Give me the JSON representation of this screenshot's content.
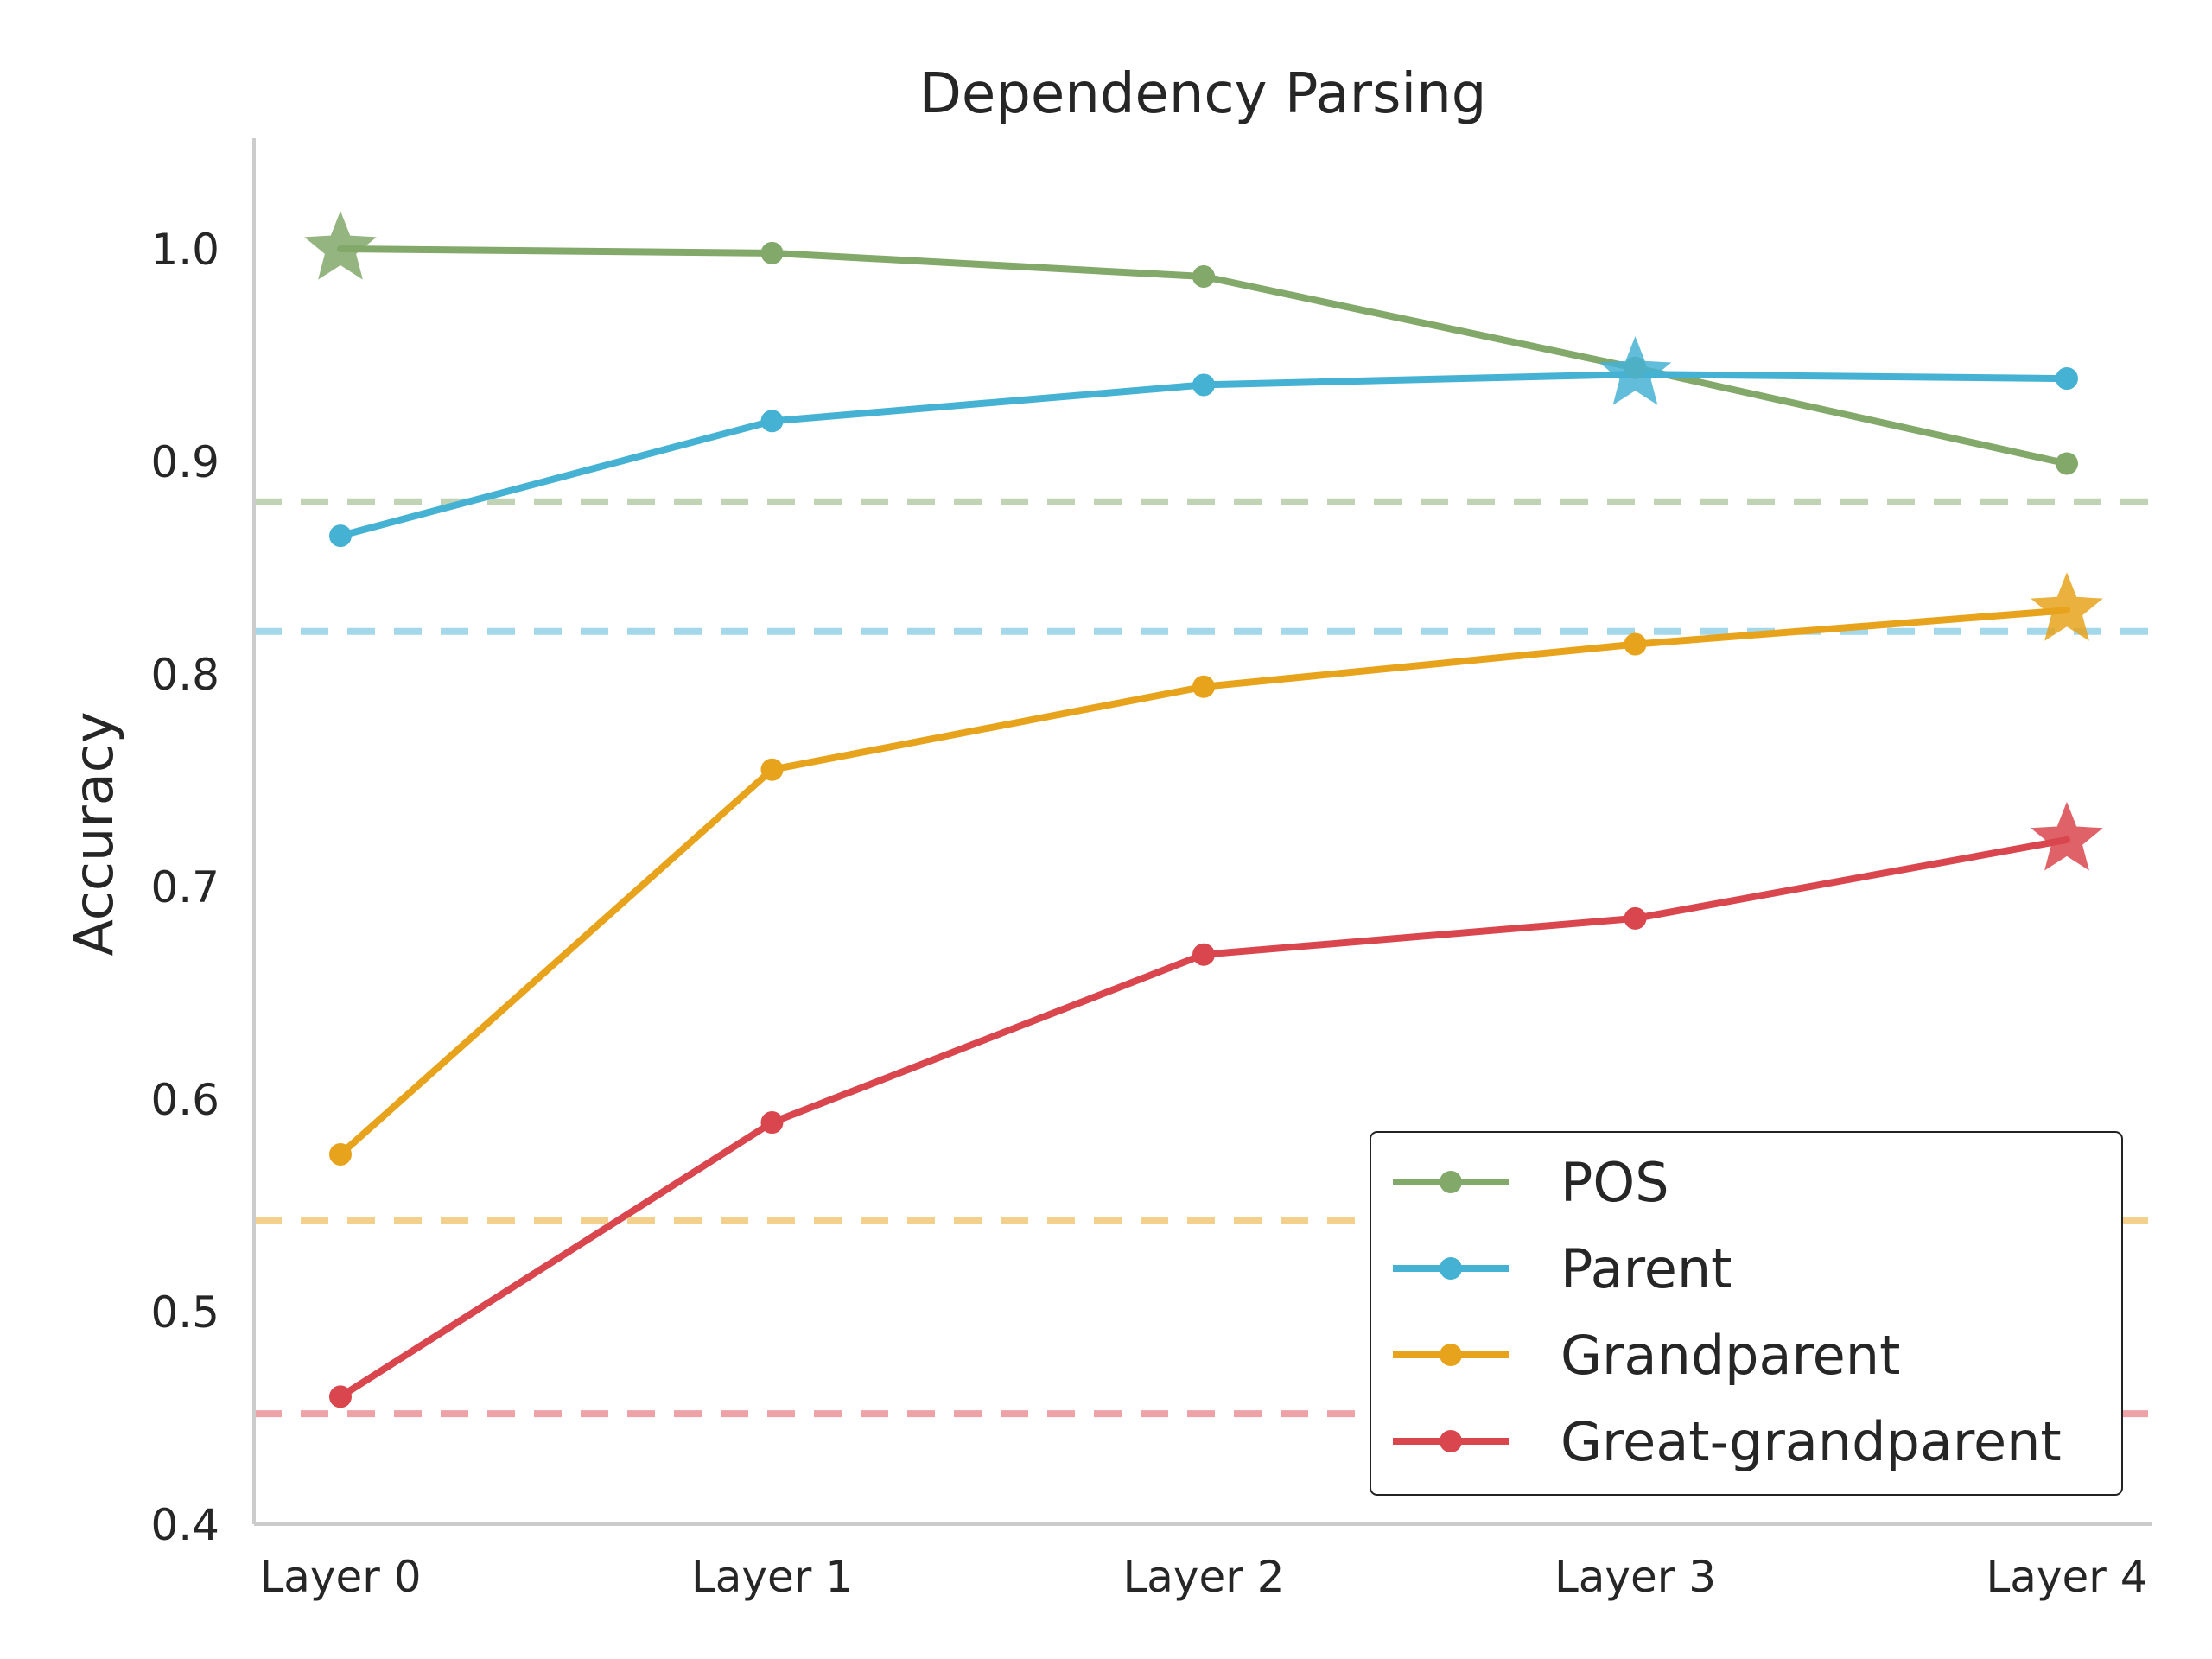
{
  "chart_data": {
    "type": "line",
    "title": "Dependency Parsing",
    "xlabel": "",
    "ylabel": "Accuracy",
    "categories": [
      "Layer 0",
      "Layer 1",
      "Layer 2",
      "Layer 3",
      "Layer 4"
    ],
    "ylim": [
      0.4,
      1.05
    ],
    "yticks": [
      0.4,
      0.5,
      0.6,
      0.7,
      0.8,
      0.9,
      1.0
    ],
    "ytick_labels": [
      "0.4",
      "0.5",
      "0.6",
      "0.7",
      "0.8",
      "0.9",
      "1.0"
    ],
    "grid": false,
    "legend_position": "bottom-right",
    "series": [
      {
        "name": "POS",
        "color": "#82A86A",
        "values": [
          1.0,
          0.998,
          0.987,
          0.944,
          0.899
        ],
        "best_index": 0,
        "baseline": 0.881
      },
      {
        "name": "Parent",
        "color": "#45B2D3",
        "values": [
          0.865,
          0.919,
          0.936,
          0.941,
          0.939
        ],
        "best_index": 3,
        "baseline": 0.82
      },
      {
        "name": "Grandparent",
        "color": "#E8A31C",
        "values": [
          0.574,
          0.755,
          0.794,
          0.814,
          0.83
        ],
        "best_index": 4,
        "baseline": 0.543
      },
      {
        "name": "Great-grandparent",
        "color": "#D9464E",
        "values": [
          0.46,
          0.589,
          0.668,
          0.685,
          0.722
        ],
        "best_index": 4,
        "baseline": 0.452
      }
    ]
  }
}
